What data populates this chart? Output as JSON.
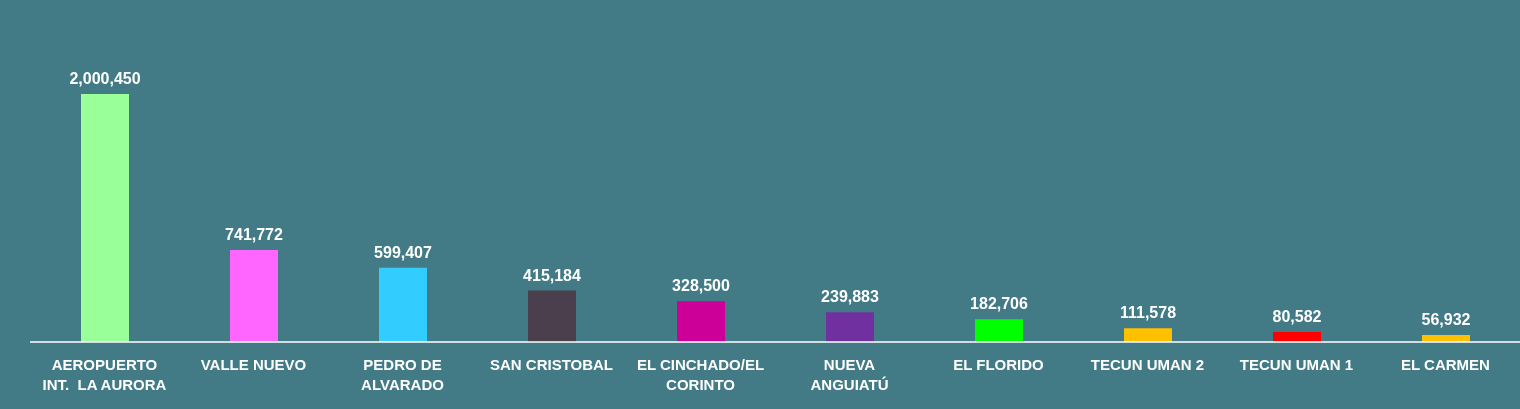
{
  "chart_data": {
    "type": "bar",
    "categories": [
      "AEROPUERTO\nINT.  LA AURORA",
      "VALLE NUEVO",
      "PEDRO DE\nALVARADO",
      "SAN CRISTOBAL",
      "EL CINCHADO/EL\nCORINTO",
      "NUEVA\nANGUIATÚ",
      "EL FLORIDO",
      "TECUN UMAN 2",
      "TECUN UMAN 1",
      "EL CARMEN"
    ],
    "values": [
      2000450,
      741772,
      599407,
      415184,
      328500,
      239883,
      182706,
      111578,
      80582,
      56932
    ],
    "colors": [
      "#99ff99",
      "#ff66ff",
      "#33ccff",
      "#4b3f4d",
      "#cc0099",
      "#7030a0",
      "#00ff00",
      "#ffc000",
      "#ff0000",
      "#ffc000"
    ],
    "value_labels": [
      "2,000,450",
      "741,772",
      "599,407",
      "415,184",
      "328,500",
      "239,883",
      "182,706",
      "111,578",
      "80,582",
      "56,932"
    ],
    "grid": false
  }
}
